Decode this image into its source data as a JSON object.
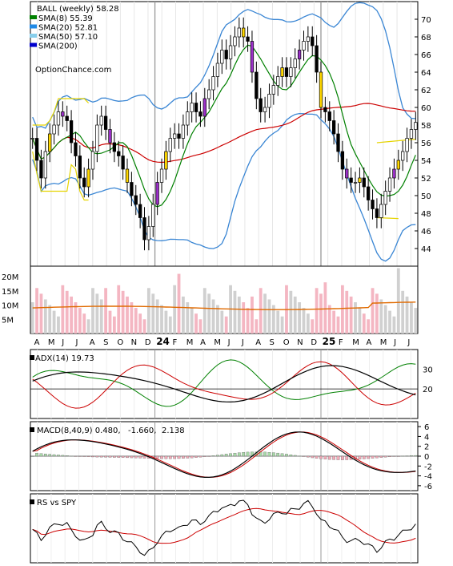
{
  "chart_data": [
    {
      "type": "candlestick",
      "title": "BALL (weekly) 58.28",
      "footer_label": "OptionChance.com",
      "legend": [
        {
          "name": "SMA(8) 55.39",
          "color": "#008000"
        },
        {
          "name": "SMA(20) 52.81",
          "color": "#1e88e5"
        },
        {
          "name": "SMA(50) 57.10",
          "color": "#87ceeb"
        },
        {
          "name": "SMA(200)",
          "color": "#0000cc"
        }
      ],
      "price_ticks": [
        44,
        46,
        48,
        50,
        52,
        54,
        56,
        58,
        60,
        62,
        64,
        66,
        68,
        70
      ],
      "ylim": [
        42,
        72
      ],
      "months": [
        "A",
        "M",
        "J",
        "J",
        "A",
        "S",
        "O",
        "N",
        "D",
        "24",
        "F",
        "M",
        "A",
        "M",
        "J",
        "J",
        "A",
        "S",
        "O",
        "N",
        "D",
        "25",
        "F",
        "M",
        "A",
        "M",
        "J",
        "J"
      ],
      "close_series": [
        56.5,
        54,
        52,
        55,
        57,
        58,
        59.5,
        59,
        58.5,
        56,
        54.5,
        52,
        51,
        53,
        55,
        58,
        59,
        57.5,
        56,
        55,
        54.5,
        53,
        51.5,
        50,
        49,
        47.5,
        45,
        46.5,
        49,
        51.5,
        53,
        55,
        56.5,
        57,
        56.5,
        58,
        59.5,
        60.5,
        59.5,
        59,
        61,
        62,
        63.5,
        65,
        66.5,
        65.5,
        67,
        68,
        69,
        68,
        67.5,
        64,
        61,
        59.5,
        60,
        61.5,
        62.5,
        63.5,
        64.5,
        63.5,
        64.5,
        65.5,
        66.5,
        67.5,
        68,
        67,
        64,
        60,
        59.5,
        58.5,
        57,
        55,
        53,
        52,
        51.5,
        51.5,
        52,
        51,
        49.5,
        48.5,
        47.5,
        49,
        50.5,
        52,
        53,
        54,
        55,
        56.5,
        57.5,
        58.3
      ],
      "volume_ticks": [
        "5M",
        "10M",
        "15M",
        "20M"
      ],
      "indicators": [
        {
          "label": "ADX(14) 19.73",
          "ticks": [
            "20",
            "30"
          ]
        },
        {
          "label": "MACD(8,40,9) 0.480,",
          "value_red": "-1.660,",
          "value_blue": "2.138",
          "ticks": [
            "6",
            "4",
            "2",
            "0",
            "-2",
            "-4",
            "-6"
          ]
        },
        {
          "label": "RS vs SPY"
        }
      ]
    }
  ]
}
